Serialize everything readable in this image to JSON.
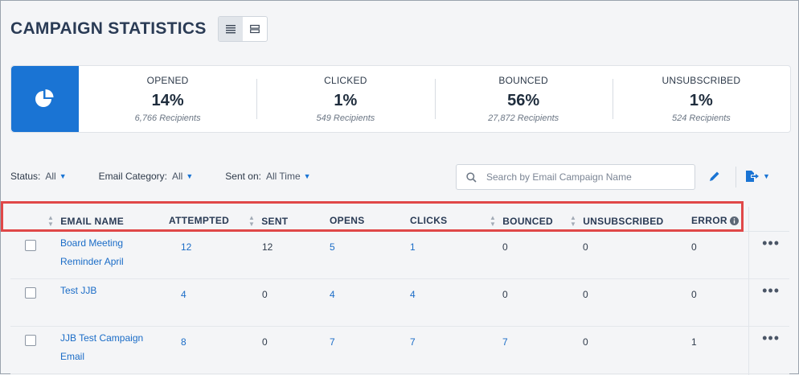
{
  "page": {
    "title": "CAMPAIGN STATISTICS"
  },
  "colors": {
    "accent": "#1a74d4",
    "link": "#1a6cc7",
    "highlight": "#e04848"
  },
  "stats": [
    {
      "label": "OPENED",
      "value": "14%",
      "sub": "6,766 Recipients"
    },
    {
      "label": "CLICKED",
      "value": "1%",
      "sub": "549 Recipients"
    },
    {
      "label": "BOUNCED",
      "value": "56%",
      "sub": "27,872 Recipients"
    },
    {
      "label": "UNSUBSCRIBED",
      "value": "1%",
      "sub": "524 Recipients"
    }
  ],
  "filters": {
    "status": {
      "label": "Status:",
      "value": "All"
    },
    "category": {
      "label": "Email Category:",
      "value": "All"
    },
    "sent_on": {
      "label": "Sent on:",
      "value": "All Time"
    }
  },
  "search": {
    "placeholder": "Search by Email Campaign Name"
  },
  "table": {
    "columns": [
      "EMAIL NAME",
      "ATTEMPTED",
      "SENT",
      "OPENS",
      "CLICKS",
      "BOUNCED",
      "UNSUBSCRIBED",
      "ERROR"
    ],
    "rows": [
      {
        "name_line1": "Board Meeting",
        "name_line2": "Reminder April",
        "attempted": "12",
        "sent": "12",
        "opens": "5",
        "clicks": "1",
        "bounced": "0",
        "unsubscribed": "0",
        "error": "0"
      },
      {
        "name_line1": "Test JJB",
        "name_line2": "",
        "attempted": "4",
        "sent": "0",
        "opens": "4",
        "clicks": "4",
        "bounced": "0",
        "unsubscribed": "0",
        "error": "0"
      },
      {
        "name_line1": "JJB Test Campaign",
        "name_line2": "Email",
        "attempted": "8",
        "sent": "0",
        "opens": "7",
        "clicks": "7",
        "bounced": "7",
        "unsubscribed": "0",
        "error": "1"
      }
    ]
  },
  "icons": {
    "pie": "pie-chart-icon",
    "list_view": "list-view-icon",
    "card_view": "card-view-icon",
    "search": "search-icon",
    "edit": "pencil-icon",
    "export": "export-icon",
    "info": "info-icon",
    "more": "more-icon"
  }
}
